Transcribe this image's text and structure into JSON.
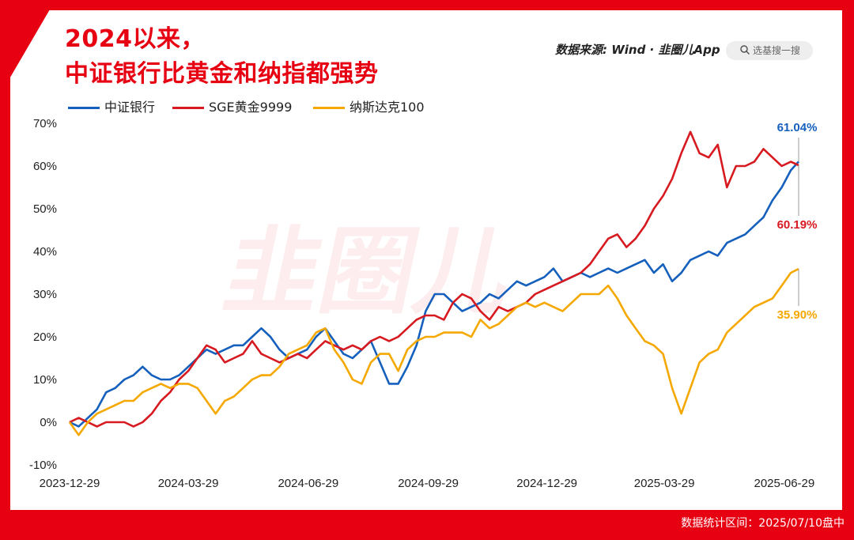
{
  "header": {
    "title_line1": "2024以来，",
    "title_line2": "中证银行比黄金和纳指都强势",
    "source": "数据来源: Wind · 韭圈儿App",
    "search_placeholder": "选基搜一搜"
  },
  "footer": {
    "note": "数据统计区间：2025/07/10盘中"
  },
  "chart_data": {
    "type": "line",
    "title": "2024以来，中证银行比黄金和纳指都强势",
    "xlabel": "",
    "ylabel": "",
    "ylim": [
      -10,
      70
    ],
    "yticks": [
      "70%",
      "60%",
      "50%",
      "40%",
      "30%",
      "20%",
      "10%",
      "0%",
      "-10%"
    ],
    "xticks": [
      "2023-12-29",
      "2024-03-29",
      "2024-06-29",
      "2024-09-29",
      "2024-12-29",
      "2025-03-29",
      "2025-06-29"
    ],
    "x_range": [
      "2023-12-29",
      "2025-07-10"
    ],
    "grid": false,
    "legend": "top-left",
    "series": [
      {
        "name": "中证银行",
        "color": "#1560bd",
        "end_label": "61.04%",
        "points": [
          [
            "2023-12-29",
            0
          ],
          [
            "2024-01-05",
            -1
          ],
          [
            "2024-01-12",
            1
          ],
          [
            "2024-01-19",
            3
          ],
          [
            "2024-01-26",
            7
          ],
          [
            "2024-02-02",
            8
          ],
          [
            "2024-02-09",
            10
          ],
          [
            "2024-02-16",
            11
          ],
          [
            "2024-02-23",
            13
          ],
          [
            "2024-03-01",
            11
          ],
          [
            "2024-03-08",
            10
          ],
          [
            "2024-03-15",
            10
          ],
          [
            "2024-03-22",
            11
          ],
          [
            "2024-03-29",
            13
          ],
          [
            "2024-04-05",
            15
          ],
          [
            "2024-04-12",
            17
          ],
          [
            "2024-04-19",
            16
          ],
          [
            "2024-04-26",
            17
          ],
          [
            "2024-05-03",
            18
          ],
          [
            "2024-05-10",
            18
          ],
          [
            "2024-05-17",
            20
          ],
          [
            "2024-05-24",
            22
          ],
          [
            "2024-05-31",
            20
          ],
          [
            "2024-06-07",
            17
          ],
          [
            "2024-06-14",
            15
          ],
          [
            "2024-06-21",
            16
          ],
          [
            "2024-06-28",
            17
          ],
          [
            "2024-07-05",
            20
          ],
          [
            "2024-07-12",
            22
          ],
          [
            "2024-07-19",
            19
          ],
          [
            "2024-07-26",
            16
          ],
          [
            "2024-08-02",
            15
          ],
          [
            "2024-08-09",
            17
          ],
          [
            "2024-08-16",
            19
          ],
          [
            "2024-08-23",
            14
          ],
          [
            "2024-08-30",
            9
          ],
          [
            "2024-09-06",
            9
          ],
          [
            "2024-09-13",
            13
          ],
          [
            "2024-09-20",
            18
          ],
          [
            "2024-09-27",
            26
          ],
          [
            "2024-10-04",
            30
          ],
          [
            "2024-10-11",
            30
          ],
          [
            "2024-10-18",
            28
          ],
          [
            "2024-10-25",
            26
          ],
          [
            "2024-11-01",
            27
          ],
          [
            "2024-11-08",
            28
          ],
          [
            "2024-11-15",
            30
          ],
          [
            "2024-11-22",
            29
          ],
          [
            "2024-11-29",
            31
          ],
          [
            "2024-12-06",
            33
          ],
          [
            "2024-12-13",
            32
          ],
          [
            "2024-12-20",
            33
          ],
          [
            "2024-12-27",
            34
          ],
          [
            "2025-01-03",
            36
          ],
          [
            "2025-01-10",
            33
          ],
          [
            "2025-01-17",
            34
          ],
          [
            "2025-01-24",
            35
          ],
          [
            "2025-01-31",
            34
          ],
          [
            "2025-02-07",
            35
          ],
          [
            "2025-02-14",
            36
          ],
          [
            "2025-02-21",
            35
          ],
          [
            "2025-02-28",
            36
          ],
          [
            "2025-03-07",
            37
          ],
          [
            "2025-03-14",
            38
          ],
          [
            "2025-03-21",
            35
          ],
          [
            "2025-03-28",
            37
          ],
          [
            "2025-04-04",
            33
          ],
          [
            "2025-04-11",
            35
          ],
          [
            "2025-04-18",
            38
          ],
          [
            "2025-04-25",
            39
          ],
          [
            "2025-05-02",
            40
          ],
          [
            "2025-05-09",
            39
          ],
          [
            "2025-05-16",
            42
          ],
          [
            "2025-05-23",
            43
          ],
          [
            "2025-05-30",
            44
          ],
          [
            "2025-06-06",
            46
          ],
          [
            "2025-06-13",
            48
          ],
          [
            "2025-06-20",
            52
          ],
          [
            "2025-06-27",
            55
          ],
          [
            "2025-07-04",
            59
          ],
          [
            "2025-07-10",
            61.04
          ]
        ]
      },
      {
        "name": "SGE黄金9999",
        "color": "#d71920",
        "end_label": "60.19%",
        "points": [
          [
            "2023-12-29",
            0
          ],
          [
            "2024-01-05",
            1
          ],
          [
            "2024-01-12",
            0
          ],
          [
            "2024-01-19",
            -1
          ],
          [
            "2024-01-26",
            0
          ],
          [
            "2024-02-02",
            0
          ],
          [
            "2024-02-09",
            0
          ],
          [
            "2024-02-16",
            -1
          ],
          [
            "2024-02-23",
            0
          ],
          [
            "2024-03-01",
            2
          ],
          [
            "2024-03-08",
            5
          ],
          [
            "2024-03-15",
            7
          ],
          [
            "2024-03-22",
            10
          ],
          [
            "2024-03-29",
            12
          ],
          [
            "2024-04-05",
            15
          ],
          [
            "2024-04-12",
            18
          ],
          [
            "2024-04-19",
            17
          ],
          [
            "2024-04-26",
            14
          ],
          [
            "2024-05-03",
            15
          ],
          [
            "2024-05-10",
            16
          ],
          [
            "2024-05-17",
            19
          ],
          [
            "2024-05-24",
            16
          ],
          [
            "2024-05-31",
            15
          ],
          [
            "2024-06-07",
            14
          ],
          [
            "2024-06-14",
            15
          ],
          [
            "2024-06-21",
            16
          ],
          [
            "2024-06-28",
            15
          ],
          [
            "2024-07-05",
            17
          ],
          [
            "2024-07-12",
            19
          ],
          [
            "2024-07-19",
            18
          ],
          [
            "2024-07-26",
            17
          ],
          [
            "2024-08-02",
            18
          ],
          [
            "2024-08-09",
            17
          ],
          [
            "2024-08-16",
            19
          ],
          [
            "2024-08-23",
            20
          ],
          [
            "2024-08-30",
            19
          ],
          [
            "2024-09-06",
            20
          ],
          [
            "2024-09-13",
            22
          ],
          [
            "2024-09-20",
            24
          ],
          [
            "2024-09-27",
            25
          ],
          [
            "2024-10-04",
            25
          ],
          [
            "2024-10-11",
            24
          ],
          [
            "2024-10-18",
            28
          ],
          [
            "2024-10-25",
            30
          ],
          [
            "2024-11-01",
            29
          ],
          [
            "2024-11-08",
            26
          ],
          [
            "2024-11-15",
            24
          ],
          [
            "2024-11-22",
            27
          ],
          [
            "2024-11-29",
            26
          ],
          [
            "2024-12-06",
            27
          ],
          [
            "2024-12-13",
            28
          ],
          [
            "2024-12-20",
            30
          ],
          [
            "2024-12-27",
            31
          ],
          [
            "2025-01-03",
            32
          ],
          [
            "2025-01-10",
            33
          ],
          [
            "2025-01-17",
            34
          ],
          [
            "2025-01-24",
            35
          ],
          [
            "2025-01-31",
            37
          ],
          [
            "2025-02-07",
            40
          ],
          [
            "2025-02-14",
            43
          ],
          [
            "2025-02-21",
            44
          ],
          [
            "2025-02-28",
            41
          ],
          [
            "2025-03-07",
            43
          ],
          [
            "2025-03-14",
            46
          ],
          [
            "2025-03-21",
            50
          ],
          [
            "2025-03-28",
            53
          ],
          [
            "2025-04-04",
            57
          ],
          [
            "2025-04-11",
            63
          ],
          [
            "2025-04-18",
            68
          ],
          [
            "2025-04-25",
            63
          ],
          [
            "2025-05-02",
            62
          ],
          [
            "2025-05-09",
            65
          ],
          [
            "2025-05-16",
            55
          ],
          [
            "2025-05-23",
            60
          ],
          [
            "2025-05-30",
            60
          ],
          [
            "2025-06-06",
            61
          ],
          [
            "2025-06-13",
            64
          ],
          [
            "2025-06-20",
            62
          ],
          [
            "2025-06-27",
            60
          ],
          [
            "2025-07-04",
            61
          ],
          [
            "2025-07-10",
            60.19
          ]
        ]
      },
      {
        "name": "纳斯达克100",
        "color": "#f5a800",
        "end_label": "35.90%",
        "points": [
          [
            "2023-12-29",
            0
          ],
          [
            "2024-01-05",
            -3
          ],
          [
            "2024-01-12",
            0
          ],
          [
            "2024-01-19",
            2
          ],
          [
            "2024-01-26",
            3
          ],
          [
            "2024-02-02",
            4
          ],
          [
            "2024-02-09",
            5
          ],
          [
            "2024-02-16",
            5
          ],
          [
            "2024-02-23",
            7
          ],
          [
            "2024-03-01",
            8
          ],
          [
            "2024-03-08",
            9
          ],
          [
            "2024-03-15",
            8
          ],
          [
            "2024-03-22",
            9
          ],
          [
            "2024-03-29",
            9
          ],
          [
            "2024-04-05",
            8
          ],
          [
            "2024-04-12",
            5
          ],
          [
            "2024-04-19",
            2
          ],
          [
            "2024-04-26",
            5
          ],
          [
            "2024-05-03",
            6
          ],
          [
            "2024-05-10",
            8
          ],
          [
            "2024-05-17",
            10
          ],
          [
            "2024-05-24",
            11
          ],
          [
            "2024-05-31",
            11
          ],
          [
            "2024-06-07",
            13
          ],
          [
            "2024-06-14",
            16
          ],
          [
            "2024-06-21",
            17
          ],
          [
            "2024-06-28",
            18
          ],
          [
            "2024-07-05",
            21
          ],
          [
            "2024-07-12",
            22
          ],
          [
            "2024-07-19",
            17
          ],
          [
            "2024-07-26",
            14
          ],
          [
            "2024-08-02",
            10
          ],
          [
            "2024-08-09",
            9
          ],
          [
            "2024-08-16",
            14
          ],
          [
            "2024-08-23",
            16
          ],
          [
            "2024-08-30",
            16
          ],
          [
            "2024-09-06",
            12
          ],
          [
            "2024-09-13",
            17
          ],
          [
            "2024-09-20",
            19
          ],
          [
            "2024-09-27",
            20
          ],
          [
            "2024-10-04",
            20
          ],
          [
            "2024-10-11",
            21
          ],
          [
            "2024-10-18",
            21
          ],
          [
            "2024-10-25",
            21
          ],
          [
            "2024-11-01",
            20
          ],
          [
            "2024-11-08",
            24
          ],
          [
            "2024-11-15",
            22
          ],
          [
            "2024-11-22",
            23
          ],
          [
            "2024-11-29",
            25
          ],
          [
            "2024-12-06",
            27
          ],
          [
            "2024-12-13",
            28
          ],
          [
            "2024-12-20",
            27
          ],
          [
            "2024-12-27",
            28
          ],
          [
            "2025-01-03",
            27
          ],
          [
            "2025-01-10",
            26
          ],
          [
            "2025-01-17",
            28
          ],
          [
            "2025-01-24",
            30
          ],
          [
            "2025-01-31",
            30
          ],
          [
            "2025-02-07",
            30
          ],
          [
            "2025-02-14",
            32
          ],
          [
            "2025-02-21",
            29
          ],
          [
            "2025-02-28",
            25
          ],
          [
            "2025-03-07",
            22
          ],
          [
            "2025-03-14",
            19
          ],
          [
            "2025-03-21",
            18
          ],
          [
            "2025-03-28",
            16
          ],
          [
            "2025-04-04",
            8
          ],
          [
            "2025-04-11",
            2
          ],
          [
            "2025-04-18",
            8
          ],
          [
            "2025-04-25",
            14
          ],
          [
            "2025-05-02",
            16
          ],
          [
            "2025-05-09",
            17
          ],
          [
            "2025-05-16",
            21
          ],
          [
            "2025-05-23",
            23
          ],
          [
            "2025-05-30",
            25
          ],
          [
            "2025-06-06",
            27
          ],
          [
            "2025-06-13",
            28
          ],
          [
            "2025-06-20",
            29
          ],
          [
            "2025-06-27",
            32
          ],
          [
            "2025-07-04",
            35
          ],
          [
            "2025-07-10",
            35.9
          ]
        ]
      }
    ]
  }
}
